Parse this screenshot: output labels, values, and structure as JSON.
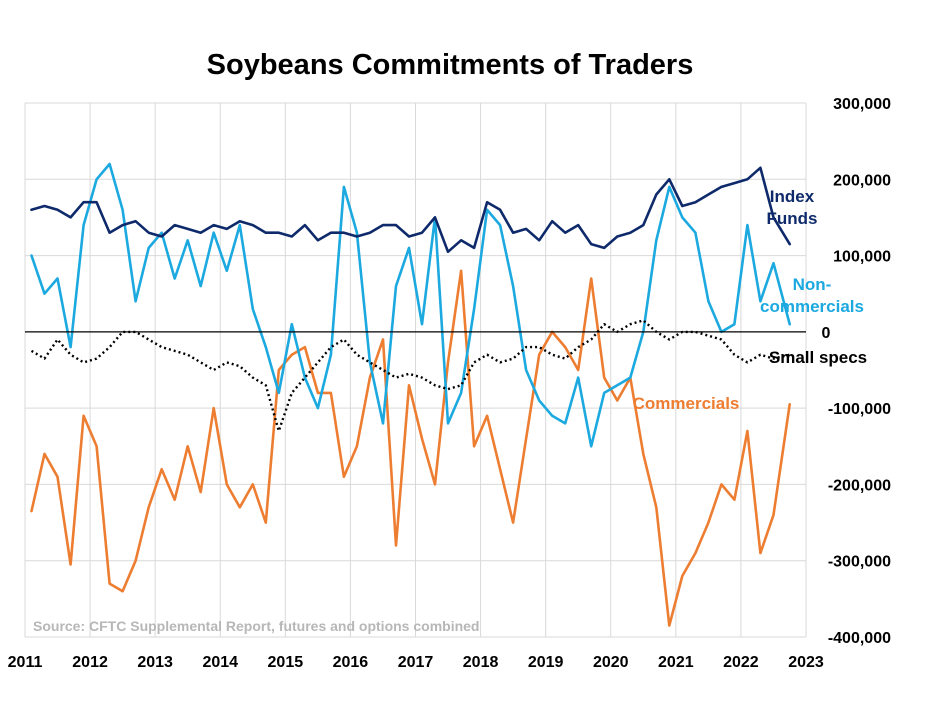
{
  "chart_data": {
    "type": "line",
    "title": "Soybeans Commitments of Traders",
    "source": "Source: CFTC Supplemental Report, futures and options combined",
    "ylim": [
      -400000,
      300000
    ],
    "xlim": [
      2011,
      2023
    ],
    "grid": true,
    "y_axis_side": "right",
    "yticks": [
      "300,000",
      "200,000",
      "100,000",
      "0",
      "-100,000",
      "-200,000",
      "-300,000",
      "-400,000"
    ],
    "ytick_values": [
      300000,
      200000,
      100000,
      0,
      -100000,
      -200000,
      -300000,
      -400000
    ],
    "xticks": [
      "2011",
      "2012",
      "2013",
      "2014",
      "2015",
      "2016",
      "2017",
      "2018",
      "2019",
      "2020",
      "2021",
      "2022",
      "2023"
    ],
    "xtick_values": [
      2011,
      2012,
      2013,
      2014,
      2015,
      2016,
      2017,
      2018,
      2019,
      2020,
      2021,
      2022,
      2023
    ],
    "series": [
      {
        "name": "Commercials",
        "label_lines": [
          "Commercials"
        ],
        "color": "#ed7d31",
        "style": "solid",
        "x": [
          2011.1,
          2011.3,
          2011.5,
          2011.7,
          2011.9,
          2012.1,
          2012.3,
          2012.5,
          2012.7,
          2012.9,
          2013.1,
          2013.3,
          2013.5,
          2013.7,
          2013.9,
          2014.1,
          2014.3,
          2014.5,
          2014.7,
          2014.9,
          2015.1,
          2015.3,
          2015.5,
          2015.7,
          2015.9,
          2016.1,
          2016.3,
          2016.5,
          2016.7,
          2016.9,
          2017.1,
          2017.3,
          2017.5,
          2017.7,
          2017.9,
          2018.1,
          2018.3,
          2018.5,
          2018.7,
          2018.9,
          2019.1,
          2019.3,
          2019.5,
          2019.7,
          2019.9,
          2020.1,
          2020.3,
          2020.5,
          2020.7,
          2020.9,
          2021.1,
          2021.3,
          2021.5,
          2021.7,
          2021.9,
          2022.1,
          2022.3,
          2022.5,
          2022.75
        ],
        "values": [
          -235000,
          -160000,
          -190000,
          -305000,
          -110000,
          -150000,
          -330000,
          -340000,
          -300000,
          -230000,
          -180000,
          -220000,
          -150000,
          -210000,
          -100000,
          -200000,
          -230000,
          -200000,
          -250000,
          -50000,
          -30000,
          -20000,
          -80000,
          -80000,
          -190000,
          -150000,
          -60000,
          -10000,
          -280000,
          -70000,
          -140000,
          -200000,
          -40000,
          80000,
          -150000,
          -110000,
          -180000,
          -250000,
          -140000,
          -30000,
          0,
          -20000,
          -50000,
          70000,
          -60000,
          -90000,
          -60000,
          -160000,
          -230000,
          -385000,
          -320000,
          -290000,
          -250000,
          -200000,
          -220000,
          -130000,
          -290000,
          -240000,
          -95000
        ]
      },
      {
        "name": "Non-commercials",
        "label_lines": [
          "Non-",
          "commercials"
        ],
        "color": "#1ba9e0",
        "style": "solid",
        "x": [
          2011.1,
          2011.3,
          2011.5,
          2011.7,
          2011.9,
          2012.1,
          2012.3,
          2012.5,
          2012.7,
          2012.9,
          2013.1,
          2013.3,
          2013.5,
          2013.7,
          2013.9,
          2014.1,
          2014.3,
          2014.5,
          2014.7,
          2014.9,
          2015.1,
          2015.3,
          2015.5,
          2015.7,
          2015.9,
          2016.1,
          2016.3,
          2016.5,
          2016.7,
          2016.9,
          2017.1,
          2017.3,
          2017.5,
          2017.7,
          2017.9,
          2018.1,
          2018.3,
          2018.5,
          2018.7,
          2018.9,
          2019.1,
          2019.3,
          2019.5,
          2019.7,
          2019.9,
          2020.1,
          2020.3,
          2020.5,
          2020.7,
          2020.9,
          2021.1,
          2021.3,
          2021.5,
          2021.7,
          2021.9,
          2022.1,
          2022.3,
          2022.5,
          2022.75
        ],
        "values": [
          100000,
          50000,
          70000,
          -20000,
          140000,
          200000,
          220000,
          160000,
          40000,
          110000,
          130000,
          70000,
          120000,
          60000,
          130000,
          80000,
          140000,
          30000,
          -20000,
          -80000,
          10000,
          -60000,
          -100000,
          -30000,
          190000,
          130000,
          -40000,
          -120000,
          60000,
          110000,
          10000,
          150000,
          -120000,
          -80000,
          30000,
          160000,
          140000,
          60000,
          -50000,
          -90000,
          -110000,
          -120000,
          -60000,
          -150000,
          -80000,
          -70000,
          -60000,
          0,
          120000,
          190000,
          150000,
          130000,
          40000,
          0,
          10000,
          140000,
          40000,
          90000,
          10000
        ]
      },
      {
        "name": "Index Funds",
        "label_lines": [
          "Index",
          "Funds"
        ],
        "color": "#0e2a6b",
        "style": "solid",
        "x": [
          2011.1,
          2011.3,
          2011.5,
          2011.7,
          2011.9,
          2012.1,
          2012.3,
          2012.5,
          2012.7,
          2012.9,
          2013.1,
          2013.3,
          2013.5,
          2013.7,
          2013.9,
          2014.1,
          2014.3,
          2014.5,
          2014.7,
          2014.9,
          2015.1,
          2015.3,
          2015.5,
          2015.7,
          2015.9,
          2016.1,
          2016.3,
          2016.5,
          2016.7,
          2016.9,
          2017.1,
          2017.3,
          2017.5,
          2017.7,
          2017.9,
          2018.1,
          2018.3,
          2018.5,
          2018.7,
          2018.9,
          2019.1,
          2019.3,
          2019.5,
          2019.7,
          2019.9,
          2020.1,
          2020.3,
          2020.5,
          2020.7,
          2020.9,
          2021.1,
          2021.3,
          2021.5,
          2021.7,
          2021.9,
          2022.1,
          2022.3,
          2022.5,
          2022.75
        ],
        "values": [
          160000,
          165000,
          160000,
          150000,
          170000,
          170000,
          130000,
          140000,
          145000,
          130000,
          125000,
          140000,
          135000,
          130000,
          140000,
          135000,
          145000,
          140000,
          130000,
          130000,
          125000,
          140000,
          120000,
          130000,
          130000,
          125000,
          130000,
          140000,
          140000,
          125000,
          130000,
          150000,
          105000,
          120000,
          110000,
          170000,
          160000,
          130000,
          135000,
          120000,
          145000,
          130000,
          140000,
          115000,
          110000,
          125000,
          130000,
          140000,
          180000,
          200000,
          165000,
          170000,
          180000,
          190000,
          195000,
          200000,
          215000,
          150000,
          115000
        ]
      },
      {
        "name": "Small specs",
        "label_lines": [
          "Small specs"
        ],
        "color": "#000000",
        "style": "dotted",
        "x": [
          2011.1,
          2011.3,
          2011.5,
          2011.7,
          2011.9,
          2012.1,
          2012.3,
          2012.5,
          2012.7,
          2012.9,
          2013.1,
          2013.3,
          2013.5,
          2013.7,
          2013.9,
          2014.1,
          2014.3,
          2014.5,
          2014.7,
          2014.9,
          2015.1,
          2015.3,
          2015.5,
          2015.7,
          2015.9,
          2016.1,
          2016.3,
          2016.5,
          2016.7,
          2016.9,
          2017.1,
          2017.3,
          2017.5,
          2017.7,
          2017.9,
          2018.1,
          2018.3,
          2018.5,
          2018.7,
          2018.9,
          2019.1,
          2019.3,
          2019.5,
          2019.7,
          2019.9,
          2020.1,
          2020.3,
          2020.5,
          2020.7,
          2020.9,
          2021.1,
          2021.3,
          2021.5,
          2021.7,
          2021.9,
          2022.1,
          2022.3,
          2022.5,
          2022.75
        ],
        "values": [
          -25000,
          -35000,
          -10000,
          -30000,
          -40000,
          -35000,
          -20000,
          0,
          0,
          -10000,
          -20000,
          -25000,
          -30000,
          -40000,
          -50000,
          -40000,
          -45000,
          -60000,
          -70000,
          -130000,
          -80000,
          -60000,
          -40000,
          -20000,
          -10000,
          -30000,
          -40000,
          -50000,
          -60000,
          -55000,
          -60000,
          -70000,
          -75000,
          -70000,
          -40000,
          -30000,
          -40000,
          -35000,
          -20000,
          -20000,
          -30000,
          -35000,
          -20000,
          -10000,
          10000,
          0,
          10000,
          15000,
          0,
          -10000,
          0,
          0,
          -5000,
          -10000,
          -30000,
          -40000,
          -30000,
          -35000,
          -30000
        ]
      }
    ]
  }
}
